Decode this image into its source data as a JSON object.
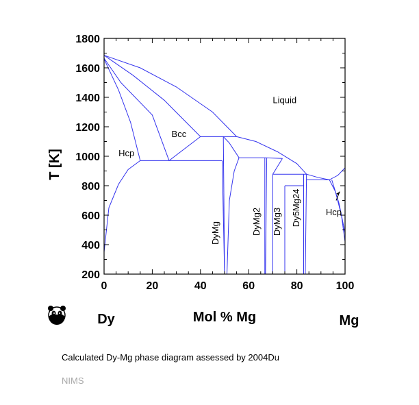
{
  "chart_data": {
    "type": "line",
    "title": "",
    "xlabel": "Mol % Mg",
    "ylabel": "T [K]",
    "xlim": [
      0,
      100
    ],
    "ylim": [
      200,
      1800
    ],
    "xticks": [
      0,
      20,
      40,
      60,
      80,
      100
    ],
    "yticks": [
      200,
      400,
      600,
      800,
      1000,
      1200,
      1400,
      1600,
      1800
    ],
    "left_element": "Dy",
    "right_element": "Mg",
    "line_color": "#3333ee",
    "grid": false,
    "series": [
      {
        "points": [
          [
            0,
            1685
          ],
          [
            15,
            1600
          ],
          [
            30,
            1470
          ],
          [
            45,
            1300
          ],
          [
            55,
            1133
          ]
        ]
      },
      {
        "points": [
          [
            0,
            1685
          ],
          [
            12,
            1550
          ],
          [
            25,
            1380
          ],
          [
            40,
            1133
          ]
        ]
      },
      {
        "points": [
          [
            0,
            1665
          ],
          [
            7,
            1500
          ],
          [
            20,
            1280
          ],
          [
            27,
            970
          ]
        ]
      },
      {
        "points": [
          [
            0,
            1660
          ],
          [
            6,
            1450
          ],
          [
            11,
            1230
          ],
          [
            15,
            970
          ]
        ]
      },
      {
        "points": [
          [
            0,
            350
          ],
          [
            2,
            650
          ],
          [
            6,
            810
          ],
          [
            10,
            910
          ],
          [
            15,
            970
          ]
        ]
      },
      {
        "points": [
          [
            15,
            970
          ],
          [
            49,
            970
          ]
        ]
      },
      {
        "points": [
          [
            27,
            970
          ],
          [
            40,
            1133
          ]
        ]
      },
      {
        "points": [
          [
            40,
            1133
          ],
          [
            55,
            1133
          ]
        ]
      },
      {
        "points": [
          [
            49,
            970
          ],
          [
            50,
            200
          ]
        ]
      },
      {
        "points": [
          [
            49.5,
            1133
          ],
          [
            50,
            200
          ]
        ]
      },
      {
        "points": [
          [
            55,
            1133
          ],
          [
            63,
            1100
          ],
          [
            72,
            1030
          ],
          [
            80,
            950
          ],
          [
            84,
            878
          ]
        ]
      },
      {
        "points": [
          [
            49.5,
            1133
          ],
          [
            52,
            1090
          ],
          [
            56,
            990
          ]
        ]
      },
      {
        "points": [
          [
            51,
            200
          ],
          [
            52,
            700
          ],
          [
            54,
            900
          ],
          [
            56,
            990
          ]
        ]
      },
      {
        "points": [
          [
            56,
            990
          ],
          [
            66.7,
            990
          ]
        ]
      },
      {
        "points": [
          [
            66.7,
            990
          ],
          [
            74,
            985
          ]
        ]
      },
      {
        "points": [
          [
            66.7,
            990
          ],
          [
            66.7,
            200
          ]
        ]
      },
      {
        "points": [
          [
            67,
            200
          ],
          [
            67.5,
            990
          ]
        ]
      },
      {
        "points": [
          [
            74,
            985
          ],
          [
            70,
            878
          ]
        ]
      },
      {
        "points": [
          [
            70,
            878
          ],
          [
            84,
            878
          ]
        ]
      },
      {
        "points": [
          [
            70,
            878
          ],
          [
            70,
            200
          ]
        ]
      },
      {
        "points": [
          [
            75,
            800
          ],
          [
            83,
            800
          ]
        ]
      },
      {
        "points": [
          [
            75,
            800
          ],
          [
            75,
            200
          ]
        ]
      },
      {
        "points": [
          [
            82.8,
            878
          ],
          [
            82.8,
            200
          ]
        ]
      },
      {
        "points": [
          [
            83.5,
            200
          ],
          [
            84,
            878
          ]
        ]
      },
      {
        "points": [
          [
            84,
            840
          ],
          [
            93.5,
            840
          ]
        ]
      },
      {
        "points": [
          [
            84,
            878
          ],
          [
            89,
            855
          ],
          [
            93.5,
            840
          ],
          [
            97,
            870
          ],
          [
            100,
            922
          ]
        ]
      },
      {
        "points": [
          [
            93.5,
            840
          ],
          [
            96,
            760
          ],
          [
            98.5,
            600
          ],
          [
            100,
            420
          ]
        ]
      },
      {
        "points": [
          [
            94.5,
            840
          ],
          [
            97.5,
            680
          ],
          [
            100,
            480
          ]
        ]
      }
    ],
    "annotations": [
      {
        "text": "Liquid",
        "x": 70,
        "y": 1360
      },
      {
        "text": "Bcc",
        "x": 28,
        "y": 1130
      },
      {
        "text": "Hcp",
        "x": 6,
        "y": 1000
      },
      {
        "text": "Hcp",
        "x": 92,
        "y": 600
      },
      {
        "text": "DyMg",
        "x": 47.5,
        "y": 400,
        "rotate": true
      },
      {
        "text": "DyMg2",
        "x": 64.5,
        "y": 460,
        "rotate": true
      },
      {
        "text": "DyMg3",
        "x": 73,
        "y": 460,
        "rotate": true
      },
      {
        "text": "Dy5Mg24",
        "x": 81,
        "y": 520,
        "rotate": true
      }
    ]
  },
  "caption": "Calculated Dy-Mg phase diagram assessed by 2004Du",
  "credit": "NIMS"
}
